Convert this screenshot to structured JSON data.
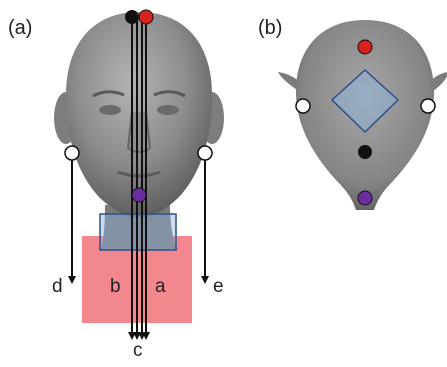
{
  "panels": [
    {
      "label": "(a)"
    },
    {
      "label": "(b)"
    }
  ],
  "annotations": {
    "a": "a",
    "b": "b",
    "c": "c",
    "d": "d",
    "e": "e"
  },
  "colors": {
    "red_marker": "#d9221c",
    "black_marker": "#111111",
    "white_marker": "#ffffff",
    "purple_marker": "#6a2ea0",
    "pink_region": "#f27a82",
    "blue_region": "#8fb0d8",
    "blue_outline": "#2f4f8a",
    "head_gray": "#8a8a8a"
  },
  "icons": {
    "head_front": "head-front-view",
    "head_top": "head-top-view"
  }
}
